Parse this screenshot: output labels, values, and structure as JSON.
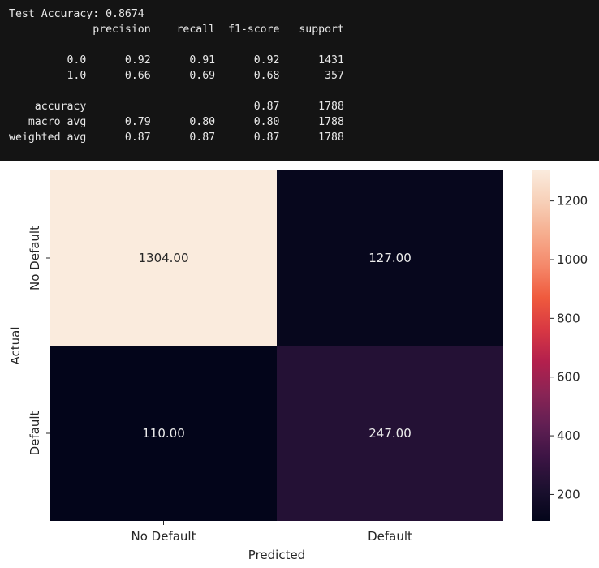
{
  "console": {
    "accuracy_line": "Test Accuracy: 0.8674",
    "report": {
      "headers": [
        "precision",
        "recall",
        "f1-score",
        "support"
      ],
      "rows": [
        {
          "label": "0.0",
          "precision": "0.92",
          "recall": "0.91",
          "f1": "0.92",
          "support": "1431"
        },
        {
          "label": "1.0",
          "precision": "0.66",
          "recall": "0.69",
          "f1": "0.68",
          "support": "357"
        },
        {
          "label": "",
          "precision": "",
          "recall": "",
          "f1": "",
          "support": ""
        },
        {
          "label": "accuracy",
          "precision": "",
          "recall": "",
          "f1": "0.87",
          "support": "1788"
        },
        {
          "label": "macro avg",
          "precision": "0.79",
          "recall": "0.80",
          "f1": "0.80",
          "support": "1788"
        },
        {
          "label": "weighted avg",
          "precision": "0.87",
          "recall": "0.87",
          "f1": "0.87",
          "support": "1788"
        }
      ]
    }
  },
  "chart_data": {
    "type": "heatmap",
    "title": "",
    "xlabel": "Predicted",
    "ylabel": "Actual",
    "x_categories": [
      "No Default",
      "Default"
    ],
    "y_categories": [
      "No Default",
      "Default"
    ],
    "values": [
      [
        1304,
        127
      ],
      [
        110,
        247
      ]
    ],
    "annotations": [
      [
        "1304.00",
        "127.00"
      ],
      [
        "110.00",
        "247.00"
      ]
    ],
    "colorbar": {
      "min": 110,
      "max": 1304,
      "ticks": [
        200,
        400,
        600,
        800,
        1000,
        1200
      ],
      "colormap": "rocket",
      "colormap_stops": [
        "#03051a",
        "#1c102f",
        "#3c1444",
        "#611f53",
        "#8a2455",
        "#b3204d",
        "#d83843",
        "#ef5a3d",
        "#f5886a",
        "#f6ad8e",
        "#f7cfb7",
        "#faebdd"
      ]
    }
  }
}
